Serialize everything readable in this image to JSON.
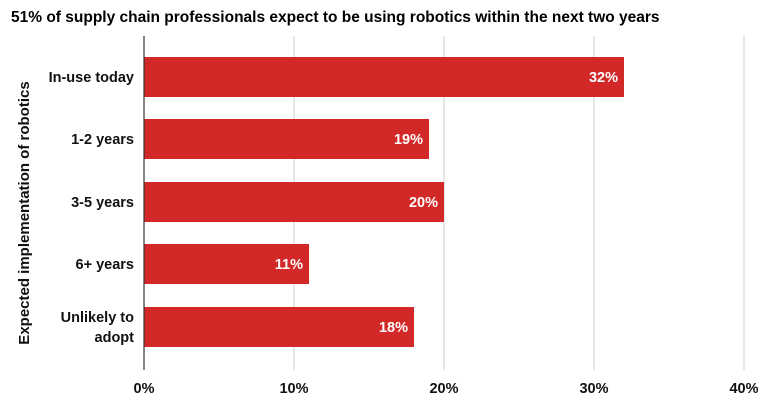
{
  "chart_data": {
    "type": "bar",
    "orientation": "horizontal",
    "title": "51% of supply chain professionals expect to be using robotics within the next two years",
    "ylabel": "Expected implementation of robotics",
    "xlabel": "",
    "categories": [
      [
        "In-use today"
      ],
      [
        "1-2 years"
      ],
      [
        "3-5 years"
      ],
      [
        "6+ years"
      ],
      [
        "Unlikely to",
        "adopt"
      ]
    ],
    "values": [
      32,
      19,
      20,
      11,
      18
    ],
    "data_labels": [
      "32%",
      "19%",
      "20%",
      "11%",
      "18%"
    ],
    "xlim": [
      0,
      40
    ],
    "x_ticks": [
      0,
      10,
      20,
      30,
      40
    ],
    "x_tick_labels": [
      "0%",
      "10%",
      "20%",
      "30%",
      "40%"
    ],
    "grid": "vertical",
    "legend": "none",
    "bar_color": "#d32828",
    "grid_color": "#cccccc",
    "axis_color": "#333333"
  }
}
